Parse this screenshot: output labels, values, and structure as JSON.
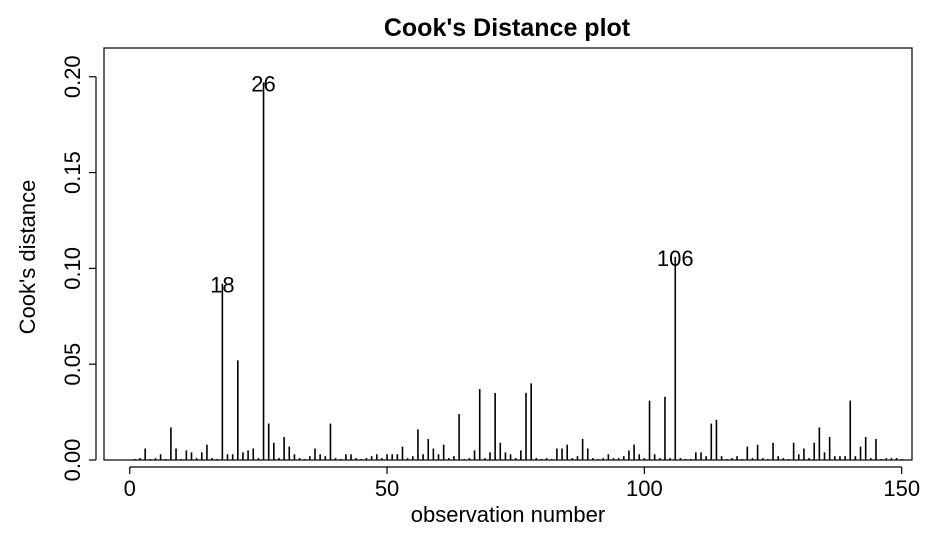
{
  "chart_data": {
    "type": "bar",
    "style": "vertical-lines",
    "title": "Cook's Distance plot",
    "xlabel": "observation number",
    "ylabel": "Cook's distance",
    "xlim": [
      -5,
      152
    ],
    "ylim": [
      0,
      0.215
    ],
    "xticks": [
      0,
      50,
      100,
      150
    ],
    "xtick_labels": [
      "0",
      "50",
      "100",
      "150"
    ],
    "yticks": [
      0.0,
      0.05,
      0.1,
      0.15,
      0.2
    ],
    "ytick_labels": [
      "0.00",
      "0.05",
      "0.10",
      "0.15",
      "0.20"
    ],
    "grid": false,
    "x": [
      1,
      2,
      3,
      4,
      5,
      6,
      7,
      8,
      9,
      10,
      11,
      12,
      13,
      14,
      15,
      16,
      17,
      18,
      19,
      20,
      21,
      22,
      23,
      24,
      25,
      26,
      27,
      28,
      29,
      30,
      31,
      32,
      33,
      34,
      35,
      36,
      37,
      38,
      39,
      40,
      41,
      42,
      43,
      44,
      45,
      46,
      47,
      48,
      49,
      50,
      51,
      52,
      53,
      54,
      55,
      56,
      57,
      58,
      59,
      60,
      61,
      62,
      63,
      64,
      65,
      66,
      67,
      68,
      69,
      70,
      71,
      72,
      73,
      74,
      75,
      76,
      77,
      78,
      79,
      80,
      81,
      82,
      83,
      84,
      85,
      86,
      87,
      88,
      89,
      90,
      91,
      92,
      93,
      94,
      95,
      96,
      97,
      98,
      99,
      100,
      101,
      102,
      103,
      104,
      105,
      106,
      107,
      108,
      109,
      110,
      111,
      112,
      113,
      114,
      115,
      116,
      117,
      118,
      119,
      120,
      121,
      122,
      123,
      124,
      125,
      126,
      127,
      128,
      129,
      130,
      131,
      132,
      133,
      134,
      135,
      136,
      137,
      138,
      139,
      140,
      141,
      142,
      143,
      144,
      145,
      146,
      147,
      148,
      149,
      150
    ],
    "values": [
      0.0005,
      0.001,
      0.006,
      0.0005,
      0.001,
      0.003,
      0.0005,
      0.017,
      0.006,
      0.0005,
      0.005,
      0.004,
      0.001,
      0.004,
      0.008,
      0.001,
      0.0005,
      0.092,
      0.003,
      0.003,
      0.052,
      0.004,
      0.005,
      0.006,
      0.001,
      0.197,
      0.019,
      0.009,
      0.001,
      0.012,
      0.007,
      0.003,
      0.001,
      0.0005,
      0.002,
      0.006,
      0.003,
      0.002,
      0.019,
      0.001,
      0.0005,
      0.003,
      0.003,
      0.001,
      0.0005,
      0.001,
      0.002,
      0.003,
      0.001,
      0.003,
      0.003,
      0.003,
      0.007,
      0.001,
      0.002,
      0.016,
      0.003,
      0.011,
      0.006,
      0.003,
      0.008,
      0.001,
      0.002,
      0.024,
      0.0005,
      0.001,
      0.005,
      0.037,
      0.001,
      0.004,
      0.035,
      0.009,
      0.004,
      0.003,
      0.001,
      0.005,
      0.035,
      0.04,
      0.001,
      0.0005,
      0.001,
      0.0005,
      0.006,
      0.006,
      0.008,
      0.001,
      0.002,
      0.011,
      0.006,
      0.001,
      0.0005,
      0.001,
      0.003,
      0.001,
      0.001,
      0.002,
      0.005,
      0.008,
      0.003,
      0.001,
      0.031,
      0.003,
      0.001,
      0.033,
      0.001,
      0.106,
      0.001,
      0.0005,
      0.0005,
      0.004,
      0.004,
      0.002,
      0.019,
      0.021,
      0.002,
      0.0005,
      0.001,
      0.002,
      0.0005,
      0.007,
      0.001,
      0.008,
      0.001,
      0.0005,
      0.009,
      0.002,
      0.001,
      0.0005,
      0.009,
      0.003,
      0.006,
      0.001,
      0.009,
      0.017,
      0.004,
      0.012,
      0.002,
      0.002,
      0.002,
      0.031,
      0.002,
      0.007,
      0.012,
      0.001,
      0.011,
      0.0005,
      0.001,
      0.001,
      0.001,
      0.0005
    ],
    "annotations": [
      {
        "x": 18,
        "text": "18"
      },
      {
        "x": 26,
        "text": "26"
      },
      {
        "x": 106,
        "text": "106"
      }
    ]
  }
}
